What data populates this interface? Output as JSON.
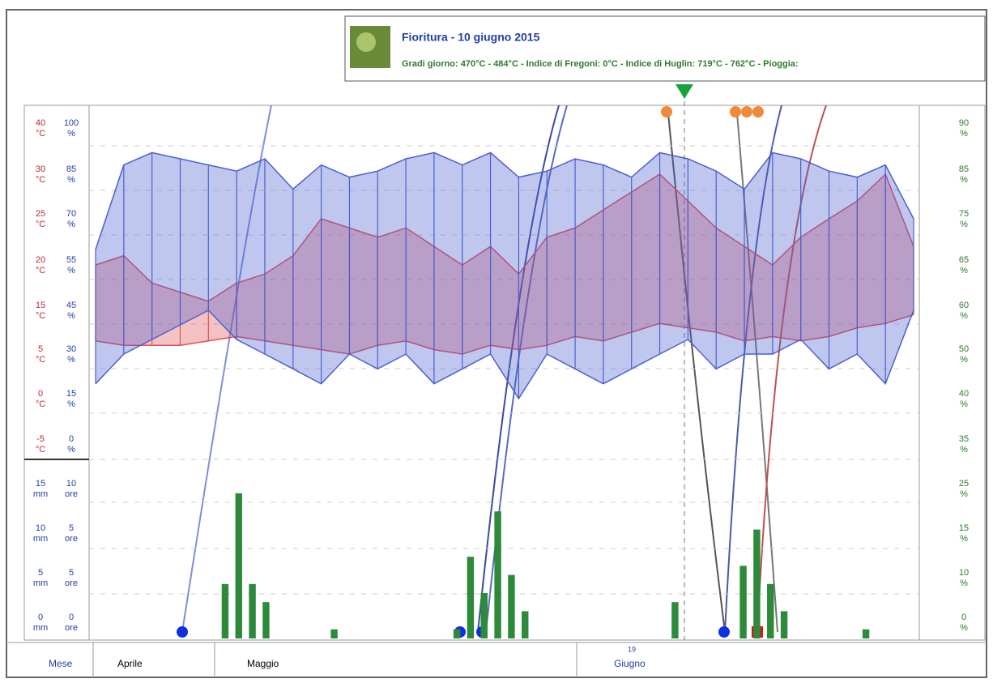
{
  "header": {
    "title": "Fioritura  -  10 giugno 2015",
    "subtitle": "Gradi giorno: 470°C - 484°C  -  Indice di Fregoni: 0°C  -  Indice di Huglin: 719°C - 762°C  -  Pioggia:"
  },
  "left_axis": {
    "temp_ticks": [
      40,
      30,
      25,
      20,
      15,
      5,
      0,
      -5
    ],
    "temp_unit": "°C",
    "hum_ticks": [
      100,
      85,
      70,
      55,
      45,
      30,
      15,
      0
    ],
    "hum_unit": "%",
    "rain_ticks": [
      15,
      10,
      5,
      0
    ],
    "rain_unit": "mm",
    "hour_ticks": [
      10,
      5,
      5,
      0
    ],
    "hour_unit": "ore"
  },
  "right_axis": {
    "ticks": [
      90,
      85,
      75,
      65,
      60,
      50,
      40,
      35,
      25,
      15,
      10,
      0
    ],
    "unit": "%"
  },
  "temperature": {
    "color": "#e05050",
    "max": [
      20,
      21,
      18,
      17,
      16,
      18,
      19,
      21,
      25,
      24,
      23,
      24,
      22,
      20,
      22,
      19,
      23,
      24,
      26,
      28,
      30,
      27,
      24,
      22,
      20,
      23,
      25,
      27,
      30,
      22
    ],
    "min": [
      8,
      7,
      7,
      7,
      8,
      9,
      8,
      7,
      6,
      5,
      7,
      8,
      6,
      5,
      7,
      6,
      7,
      9,
      8,
      10,
      12,
      11,
      10,
      8,
      9,
      8,
      9,
      11,
      12,
      14
    ]
  },
  "humidity": {
    "color": "#4a5fd0",
    "max": [
      60,
      88,
      92,
      90,
      88,
      86,
      90,
      80,
      88,
      84,
      86,
      90,
      92,
      88,
      92,
      84,
      86,
      90,
      88,
      84,
      92,
      90,
      86,
      80,
      92,
      90,
      86,
      84,
      88,
      70
    ],
    "min": [
      20,
      30,
      35,
      40,
      45,
      35,
      30,
      25,
      20,
      30,
      25,
      30,
      20,
      25,
      30,
      15,
      30,
      25,
      20,
      25,
      30,
      35,
      25,
      30,
      30,
      35,
      25,
      30,
      20,
      45
    ]
  },
  "rain": {
    "color": "#2d8a3a",
    "values": [
      0,
      0,
      0,
      0,
      0,
      0,
      0,
      0,
      0,
      6,
      16,
      6,
      4,
      0,
      0,
      0,
      0,
      1,
      0,
      0,
      0,
      0,
      0,
      0,
      0,
      0,
      1,
      9,
      5,
      14,
      7,
      3,
      0,
      0,
      0,
      0,
      0,
      0,
      0,
      0,
      0,
      0,
      4,
      0,
      0,
      0,
      0,
      8,
      12,
      6,
      3,
      0,
      0,
      0,
      0,
      0,
      1,
      0,
      0,
      0
    ]
  },
  "months": {
    "label": "Mese",
    "names": [
      "Aprile",
      "Maggio",
      "Giugno"
    ],
    "day": "19"
  }
}
